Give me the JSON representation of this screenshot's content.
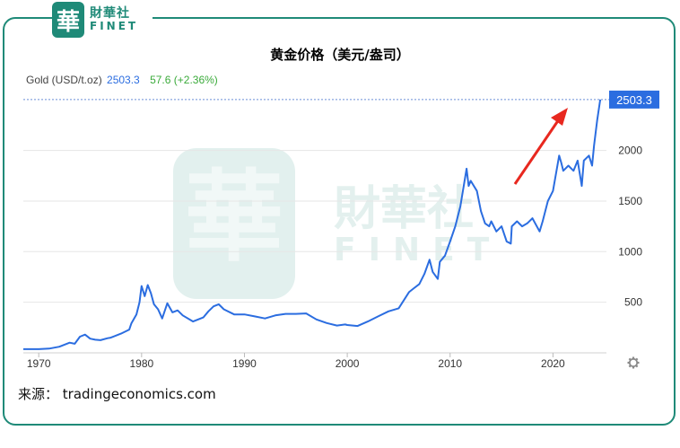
{
  "brand": {
    "logo_char": "華",
    "name_cn": "財華社",
    "name_en": "FINET",
    "colors": {
      "brand": "#1f8a78"
    }
  },
  "title": "黄金价格（美元/盎司）",
  "legend": {
    "series": "Gold (USD/t.oz)",
    "value": "2503.3",
    "change": "57.6 (+2.36%)"
  },
  "source": "来源：  tradingeconomics.com",
  "watermark": {
    "logo_char": "華",
    "name_cn": "財華社",
    "name_en": "FINET"
  },
  "settings_icon": "gear-icon",
  "chart_data": {
    "type": "line",
    "title": "黄金价格（美元/盎司）",
    "xlabel": "",
    "ylabel": "",
    "x_ticks": [
      "1970",
      "1980",
      "1990",
      "2000",
      "2010",
      "2020"
    ],
    "y_ticks": [
      "500",
      "1000",
      "1500",
      "2000"
    ],
    "xlim": [
      1968.5,
      2025.2
    ],
    "ylim": [
      0,
      2600
    ],
    "grid": true,
    "last_value_label": "2503.3",
    "last_value": 2503.3,
    "colors": {
      "line": "#2b6de0",
      "grid": "#e6e6e6",
      "dashed": "#6b8fd6",
      "badge": "#2b6de0",
      "arrow": "#e8281f"
    },
    "series": [
      {
        "x": [
          1968.5,
          1970,
          1971,
          1972,
          1973,
          1973.5,
          1974,
          1974.5,
          1975,
          1975.5,
          1976,
          1976.7,
          1977,
          1978,
          1978.8,
          1979,
          1979.5,
          1979.8,
          1980,
          1980.3,
          1980.6,
          1980.9,
          1981.2,
          1981.6,
          1982,
          1982.5,
          1983,
          1983.5,
          1984,
          1985,
          1985.5,
          1986,
          1986.5,
          1987,
          1987.5,
          1988,
          1989,
          1990,
          1991,
          1992,
          1993,
          1994,
          1995,
          1996,
          1997,
          1998,
          1999,
          1999.8,
          2000,
          2001,
          2002,
          2003,
          2004,
          2005,
          2006,
          2006.5,
          2007,
          2007.5,
          2008,
          2008.3,
          2008.8,
          2009,
          2009.5,
          2010,
          2010.5,
          2011,
          2011.6,
          2011.8,
          2012,
          2012.6,
          2013,
          2013.4,
          2013.8,
          2014,
          2014.5,
          2015,
          2015.5,
          2015.9,
          2016,
          2016.5,
          2017,
          2017.5,
          2018,
          2018.7,
          2019,
          2019.5,
          2020,
          2020.6,
          2020.8,
          2021,
          2021.5,
          2022,
          2022.4,
          2022.8,
          2023,
          2023.5,
          2023.8,
          2024,
          2024.3,
          2024.6
        ],
        "y": [
          36,
          36,
          42,
          60,
          100,
          90,
          160,
          180,
          140,
          130,
          125,
          145,
          150,
          190,
          230,
          290,
          380,
          500,
          660,
          560,
          670,
          590,
          480,
          430,
          340,
          490,
          400,
          420,
          370,
          310,
          330,
          350,
          410,
          460,
          480,
          430,
          380,
          380,
          360,
          340,
          370,
          385,
          385,
          390,
          330,
          295,
          270,
          280,
          275,
          265,
          310,
          360,
          410,
          440,
          600,
          640,
          680,
          780,
          920,
          800,
          730,
          900,
          960,
          1100,
          1250,
          1450,
          1820,
          1650,
          1700,
          1600,
          1400,
          1280,
          1250,
          1300,
          1200,
          1250,
          1100,
          1080,
          1250,
          1300,
          1250,
          1280,
          1330,
          1200,
          1300,
          1500,
          1600,
          1950,
          1880,
          1800,
          1850,
          1800,
          1900,
          1650,
          1900,
          1950,
          1850,
          2050,
          2300,
          2503.3
        ]
      }
    ],
    "annotation": "red arrow pointing to latest high"
  }
}
